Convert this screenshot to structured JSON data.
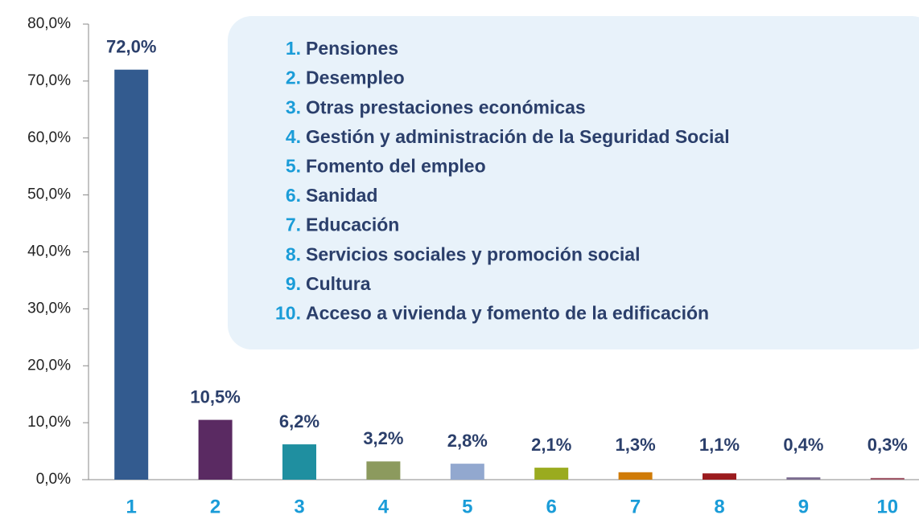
{
  "chart_data": {
    "type": "bar",
    "categories": [
      "1",
      "2",
      "3",
      "4",
      "5",
      "6",
      "7",
      "8",
      "9",
      "10"
    ],
    "values": [
      72.0,
      10.5,
      6.2,
      3.2,
      2.8,
      2.1,
      1.3,
      1.1,
      0.4,
      0.3
    ],
    "value_labels": [
      "72,0%",
      "10,5%",
      "6,2%",
      "3,2%",
      "2,8%",
      "2,1%",
      "1,3%",
      "1,1%",
      "0,4%",
      "0,3%"
    ],
    "colors": [
      "#335b8f",
      "#5a2a62",
      "#1f8fa0",
      "#8c9a5e",
      "#92a8cf",
      "#9aab1f",
      "#d07b07",
      "#9b1b1e",
      "#7b6b8f",
      "#a05868"
    ],
    "ylim": [
      0,
      80
    ],
    "yticks": [
      {
        "value": 0,
        "label": "0,0%"
      },
      {
        "value": 10,
        "label": "10,0%"
      },
      {
        "value": 20,
        "label": "20,0%"
      },
      {
        "value": 30,
        "label": "30,0%"
      },
      {
        "value": 40,
        "label": "40,0%"
      },
      {
        "value": 50,
        "label": "50,0%"
      },
      {
        "value": 60,
        "label": "60,0%"
      },
      {
        "value": 70,
        "label": "70,0%"
      },
      {
        "value": 80,
        "label": "80,0%"
      }
    ],
    "legend_items": [
      {
        "number": "1.",
        "label": "Pensiones"
      },
      {
        "number": "2.",
        "label": "Desempleo"
      },
      {
        "number": "3.",
        "label": "Otras prestaciones económicas"
      },
      {
        "number": "4.",
        "label": "Gestión y administración de la Seguridad Social"
      },
      {
        "number": "5.",
        "label": "Fomento del empleo"
      },
      {
        "number": "6.",
        "label": "Sanidad"
      },
      {
        "number": "7.",
        "label": "Educación"
      },
      {
        "number": "8.",
        "label": "Servicios sociales y promoción social"
      },
      {
        "number": "9.",
        "label": "Cultura"
      },
      {
        "number": "10.",
        "label": "Acceso a vivienda y fomento de la edificación"
      }
    ]
  }
}
